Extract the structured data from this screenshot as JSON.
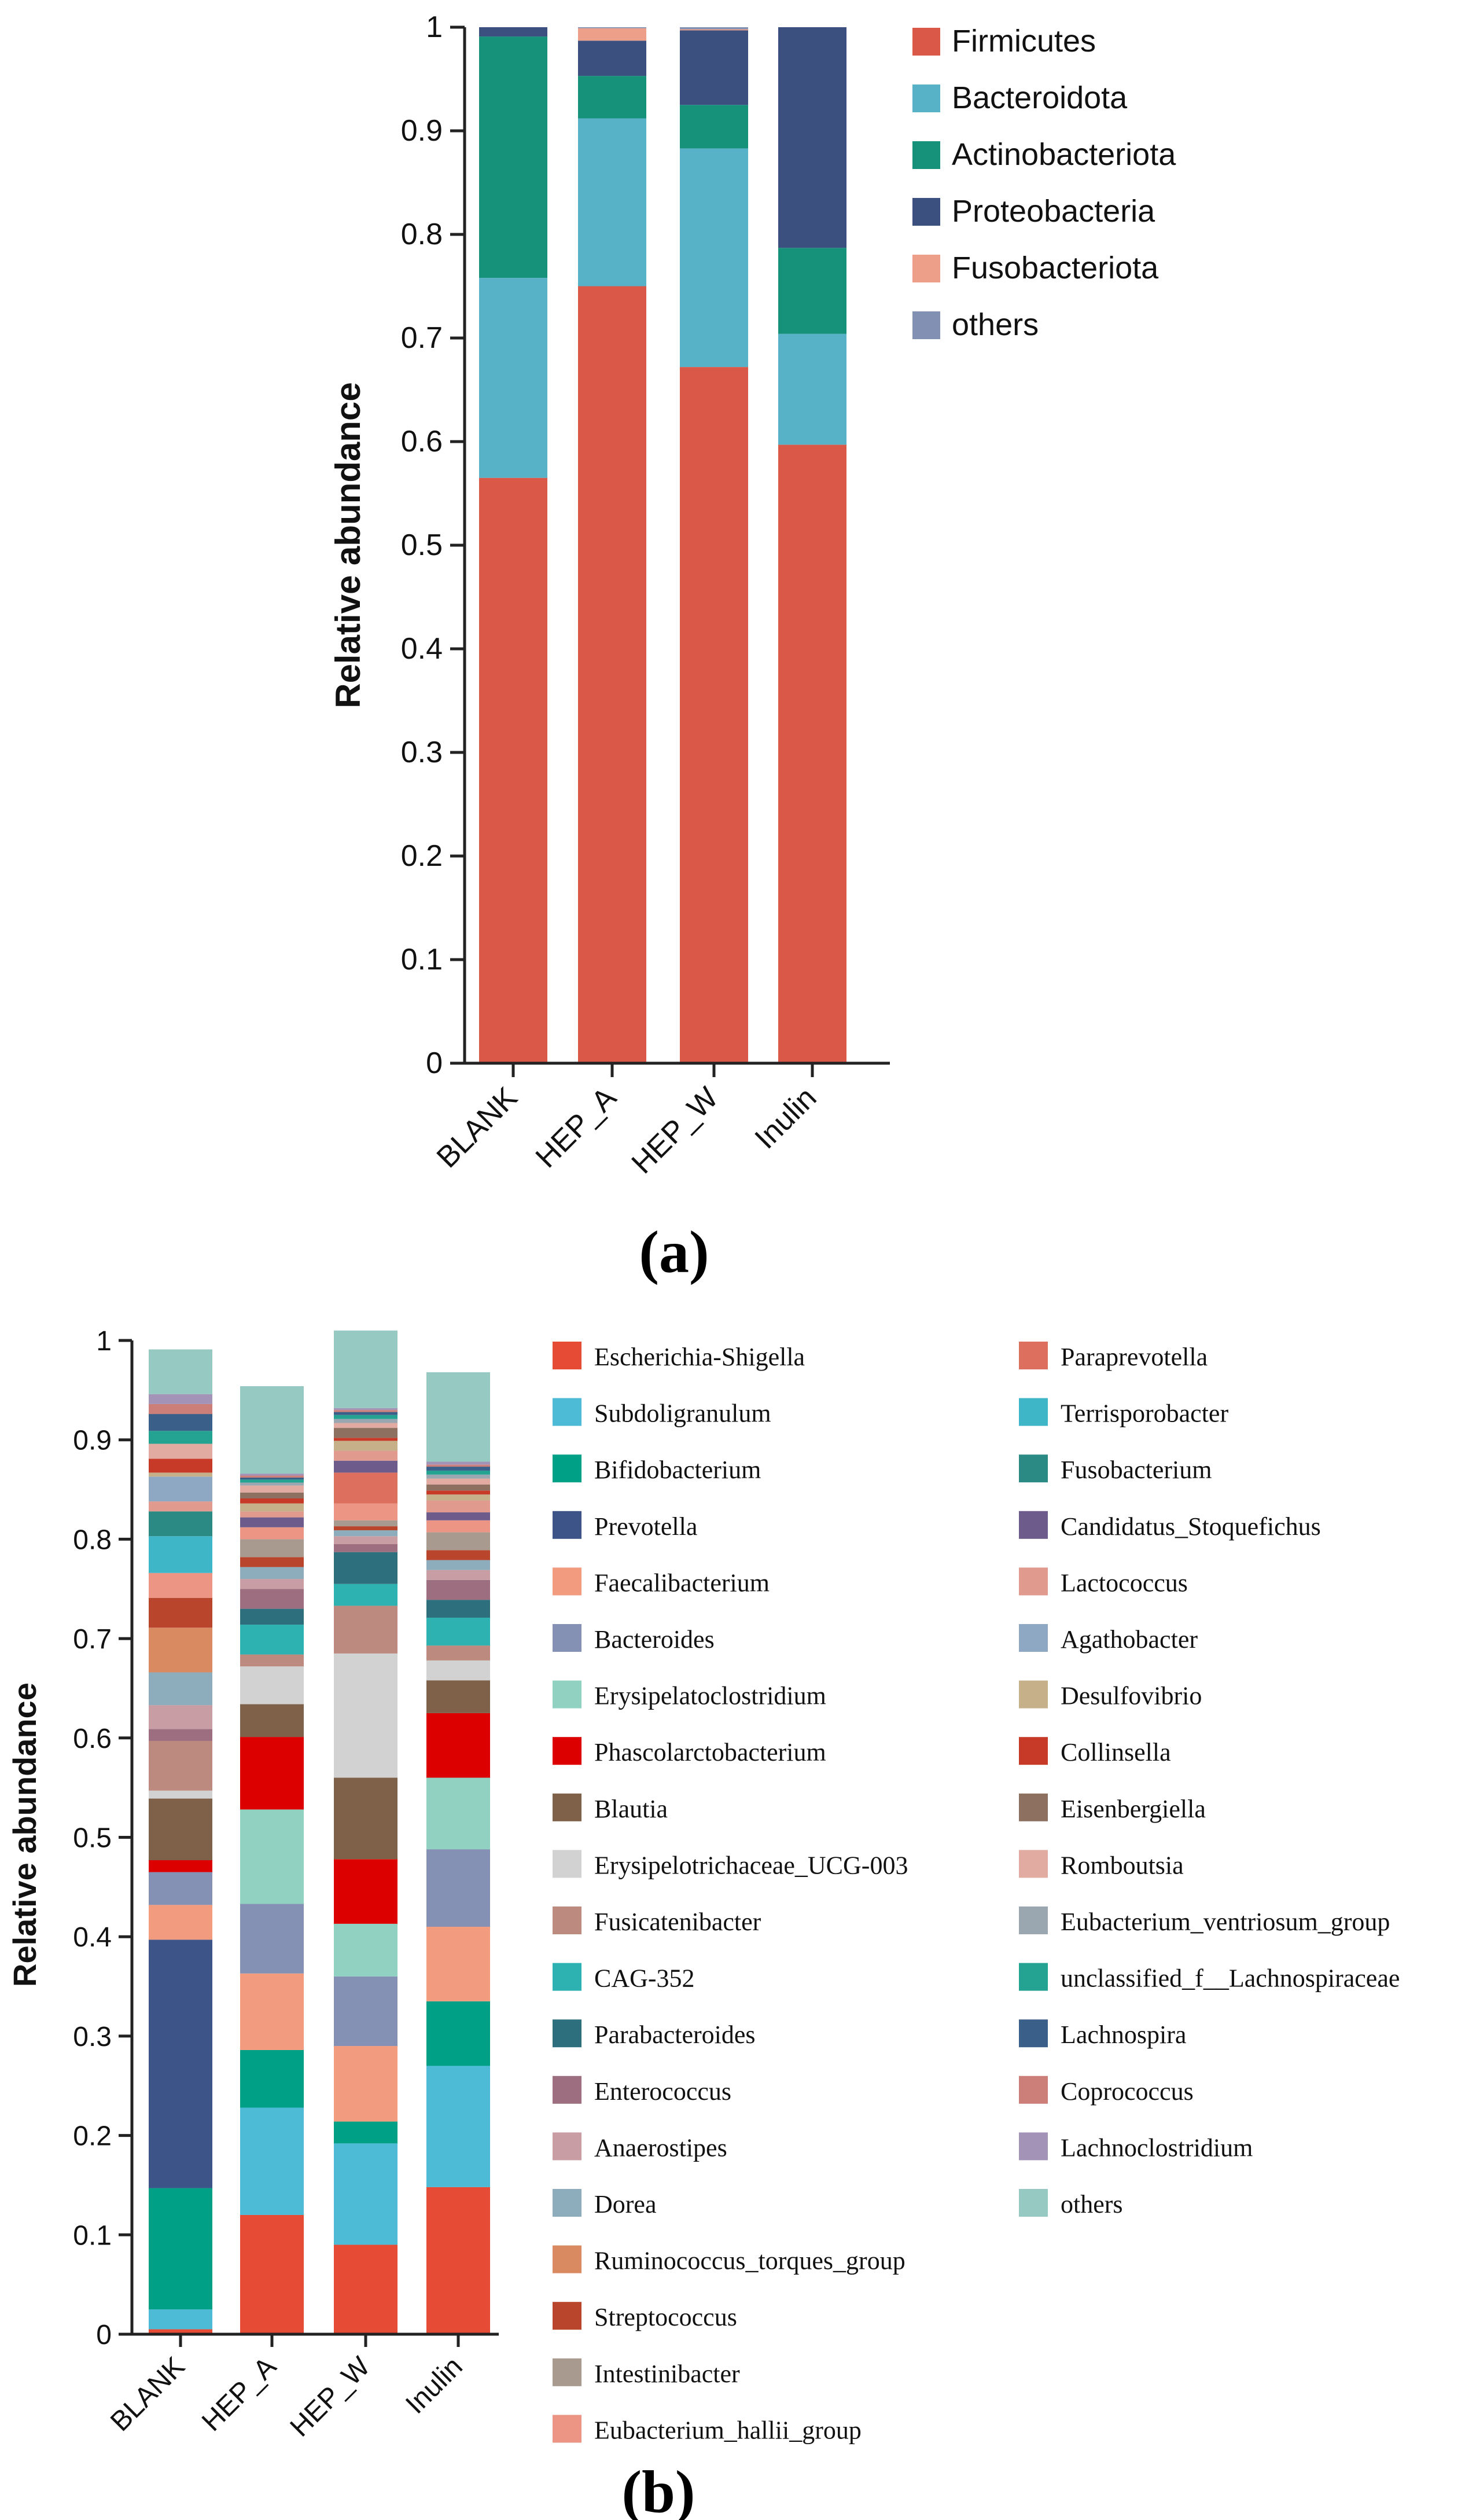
{
  "chart_data": [
    {
      "type": "bar",
      "stacked": true,
      "panel_label": "(a)",
      "title": "",
      "xlabel": "",
      "ylabel": "Relative abundance",
      "ylim": [
        0,
        1
      ],
      "yticks": [
        "0",
        "0.1",
        "0.2",
        "0.3",
        "0.4",
        "0.5",
        "0.6",
        "0.7",
        "0.8",
        "0.9",
        "1"
      ],
      "categories": [
        "BLANK",
        "HEP_A",
        "HEP_W",
        "Inulin"
      ],
      "series": [
        {
          "name": "Firmicutes",
          "color": "#d95848",
          "values": [
            0.565,
            0.75,
            0.672,
            0.597
          ]
        },
        {
          "name": "Bacteroidota",
          "color": "#57b2c8",
          "values": [
            0.193,
            0.162,
            0.211,
            0.107
          ]
        },
        {
          "name": "Actinobacteriota",
          "color": "#16917a",
          "values": [
            0.233,
            0.041,
            0.042,
            0.083
          ]
        },
        {
          "name": "Proteobacteria",
          "color": "#3b507f",
          "values": [
            0.009,
            0.034,
            0.072,
            0.213
          ]
        },
        {
          "name": "Fusobacteriota",
          "color": "#ed9f89",
          "values": [
            0.0,
            0.012,
            0.001,
            0.0
          ]
        },
        {
          "name": "others",
          "color": "#8190b3",
          "values": [
            0.0,
            0.001,
            0.002,
            0.0
          ]
        }
      ]
    },
    {
      "type": "bar",
      "stacked": true,
      "panel_label": "(b)",
      "title": "",
      "xlabel": "",
      "ylabel": "Relative abundance",
      "ylim": [
        0,
        1
      ],
      "yticks": [
        "0",
        "0.1",
        "0.2",
        "0.3",
        "0.4",
        "0.5",
        "0.6",
        "0.7",
        "0.8",
        "0.9",
        "1"
      ],
      "categories": [
        "BLANK",
        "HEP_A",
        "HEP_W",
        "Inulin"
      ],
      "series": [
        {
          "name": "Escherichia-Shigella",
          "color": "#e64b35",
          "values": [
            0.005,
            0.12,
            0.09,
            0.148
          ]
        },
        {
          "name": "Subdoligranulum",
          "color": "#4dbbd5",
          "values": [
            0.02,
            0.108,
            0.102,
            0.122
          ]
        },
        {
          "name": "Bifidobacterium",
          "color": "#00a087",
          "values": [
            0.122,
            0.058,
            0.022,
            0.065
          ]
        },
        {
          "name": "Prevotella",
          "color": "#3c5488",
          "values": [
            0.25,
            0.0,
            0.0,
            0.0
          ]
        },
        {
          "name": "Faecalibacterium",
          "color": "#f39b7f",
          "values": [
            0.035,
            0.077,
            0.076,
            0.075
          ]
        },
        {
          "name": "Bacteroides",
          "color": "#8491b4",
          "values": [
            0.033,
            0.07,
            0.07,
            0.078
          ]
        },
        {
          "name": "Erysipelatoclostridium",
          "color": "#91d1c2",
          "values": [
            0.0,
            0.095,
            0.053,
            0.072
          ]
        },
        {
          "name": "Phascolarctobacterium",
          "color": "#dc0000",
          "values": [
            0.012,
            0.073,
            0.065,
            0.065
          ]
        },
        {
          "name": "Blautia",
          "color": "#7e6148",
          "values": [
            0.062,
            0.033,
            0.082,
            0.033
          ]
        },
        {
          "name": "Erysipelotrichaceae_UCG-003",
          "color": "#d2d2d2",
          "values": [
            0.008,
            0.038,
            0.125,
            0.02
          ]
        },
        {
          "name": "Fusicatenibacter",
          "color": "#bc8a7e",
          "values": [
            0.05,
            0.012,
            0.048,
            0.015
          ]
        },
        {
          "name": "CAG-352",
          "color": "#2eb2b1",
          "values": [
            0.0,
            0.03,
            0.022,
            0.028
          ]
        },
        {
          "name": "Parabacteroides",
          "color": "#2e6f7e",
          "values": [
            0.0,
            0.016,
            0.032,
            0.018
          ]
        },
        {
          "name": "Enterococcus",
          "color": "#9c6e80",
          "values": [
            0.012,
            0.02,
            0.008,
            0.02
          ]
        },
        {
          "name": "Anaerostipes",
          "color": "#c89da3",
          "values": [
            0.024,
            0.01,
            0.008,
            0.01
          ]
        },
        {
          "name": "Dorea",
          "color": "#8eadbc",
          "values": [
            0.033,
            0.012,
            0.006,
            0.01
          ]
        },
        {
          "name": "Ruminococcus_torques_group",
          "color": "#d98a60",
          "values": [
            0.045,
            0.0,
            0.0,
            0.0
          ]
        },
        {
          "name": "Streptococcus",
          "color": "#b8452c",
          "values": [
            0.03,
            0.01,
            0.004,
            0.01
          ]
        },
        {
          "name": "Intestinibacter",
          "color": "#a89a8e",
          "values": [
            0.0,
            0.018,
            0.006,
            0.018
          ]
        },
        {
          "name": "Eubacterium_hallii_group",
          "color": "#ec9585",
          "values": [
            0.025,
            0.012,
            0.017,
            0.012
          ]
        },
        {
          "name": "Paraprevotella",
          "color": "#dc6f5e",
          "values": [
            0.0,
            0.0,
            0.031,
            0.0
          ]
        },
        {
          "name": "Terrisporobacter",
          "color": "#3fb6c8",
          "values": [
            0.037,
            0.0,
            0.0,
            0.0
          ]
        },
        {
          "name": "Fusobacterium",
          "color": "#2b8a83",
          "values": [
            0.025,
            0.0,
            0.0,
            0.0
          ]
        },
        {
          "name": "Candidatus_Stoquefichus",
          "color": "#6d5b8c",
          "values": [
            0.0,
            0.01,
            0.012,
            0.008
          ]
        },
        {
          "name": "Lactococcus",
          "color": "#e09a8e",
          "values": [
            0.01,
            0.006,
            0.01,
            0.012
          ]
        },
        {
          "name": "Agathobacter",
          "color": "#8ea7c2",
          "values": [
            0.025,
            0.0,
            0.0,
            0.0
          ]
        },
        {
          "name": "Desulfovibrio",
          "color": "#c5b08a",
          "values": [
            0.004,
            0.008,
            0.01,
            0.006
          ]
        },
        {
          "name": "Collinsella",
          "color": "#c73a27",
          "values": [
            0.014,
            0.005,
            0.003,
            0.004
          ]
        },
        {
          "name": "Eisenbergiella",
          "color": "#8e7060",
          "values": [
            0.0,
            0.006,
            0.01,
            0.006
          ]
        },
        {
          "name": "Romboutsia",
          "color": "#e1aba2",
          "values": [
            0.015,
            0.007,
            0.005,
            0.006
          ]
        },
        {
          "name": "Eubacterium_ventriosum_group",
          "color": "#9aa6b0",
          "values": [
            0.0,
            0.003,
            0.004,
            0.004
          ]
        },
        {
          "name": "unclassified_f__Lachnospiraceae",
          "color": "#24a392",
          "values": [
            0.013,
            0.003,
            0.004,
            0.004
          ]
        },
        {
          "name": "Lachnospira",
          "color": "#3a5f88",
          "values": [
            0.017,
            0.002,
            0.003,
            0.004
          ]
        },
        {
          "name": "Coprococcus",
          "color": "#cc7f78",
          "values": [
            0.01,
            0.002,
            0.002,
            0.002
          ]
        },
        {
          "name": "Lachnoclostridium",
          "color": "#a394b7",
          "values": [
            0.01,
            0.002,
            0.002,
            0.003
          ]
        },
        {
          "name": "others",
          "color": "#97c9c3",
          "values": [
            0.045,
            0.088,
            0.078,
            0.09
          ]
        }
      ]
    }
  ]
}
